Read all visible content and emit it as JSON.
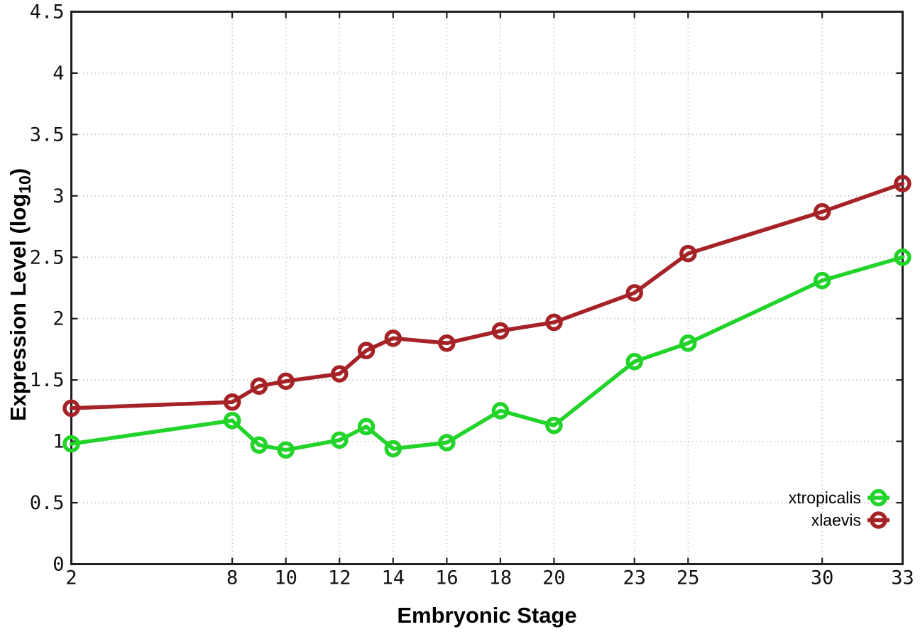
{
  "chart_data": {
    "type": "line",
    "title": "",
    "xlabel": "Embryonic Stage",
    "ylabel": "Expression Level (log10)",
    "ylabel_rich": {
      "pre": "Expression Level (log",
      "sub": "10",
      "post": ")"
    },
    "xlim": [
      2,
      33
    ],
    "ylim": [
      0,
      4.5
    ],
    "grid": true,
    "legend_position": "bottom-right",
    "x_ticks": [
      2,
      8,
      10,
      12,
      14,
      16,
      18,
      20,
      23,
      25,
      30,
      33
    ],
    "x_tick_labels": [
      "2",
      "8",
      "10",
      "12",
      "14",
      "16",
      "18",
      "20",
      "23",
      "25",
      "30",
      "33"
    ],
    "y_ticks": [
      0,
      0.5,
      1,
      1.5,
      2,
      2.5,
      3,
      3.5,
      4,
      4.5
    ],
    "y_tick_labels": [
      "0",
      "0.5",
      "1",
      "1.5",
      "2",
      "2.5",
      "3",
      "3.5",
      "4",
      "4.5"
    ],
    "x": [
      2,
      8,
      9,
      10,
      12,
      13,
      14,
      16,
      18,
      20,
      23,
      25,
      30,
      33
    ],
    "series": [
      {
        "name": "xtropicalis",
        "color": "#22d42a",
        "values": [
          0.98,
          1.17,
          0.97,
          0.93,
          1.01,
          1.12,
          0.94,
          0.99,
          1.25,
          1.13,
          1.65,
          1.8,
          2.31,
          2.5
        ]
      },
      {
        "name": "xlaevis",
        "color": "#a52327",
        "values": [
          1.27,
          1.32,
          1.45,
          1.49,
          1.55,
          1.74,
          1.84,
          1.8,
          1.9,
          1.97,
          2.21,
          2.53,
          2.87,
          3.1
        ]
      }
    ],
    "marker": "open-circle"
  },
  "colors": {
    "background": "#ffffff",
    "axis": "#1f1f1f",
    "grid": "#bcbcbc",
    "text": "#000000"
  }
}
